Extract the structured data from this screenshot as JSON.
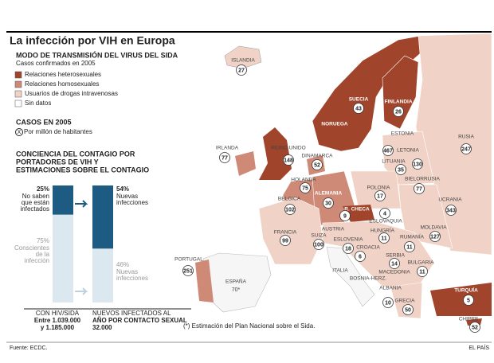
{
  "header": {
    "title": "La infección por VIH en Europa",
    "subtitle": "MODO DE TRANSMISIÓN DEL VIRUS DEL SIDA",
    "note": "Casos confirmados en 2005"
  },
  "legend": [
    {
      "label": "Relaciones heterosexuales",
      "color": "#a0442b"
    },
    {
      "label": "Relaciones homosexuales",
      "color": "#cf8a77"
    },
    {
      "label": "Usuarios de drogas intravenosas",
      "color": "#f0d2c6"
    },
    {
      "label": "Sin datos",
      "color": "#ffffff"
    }
  ],
  "cases": {
    "title": "CASOS EN 2005",
    "symbol": "X",
    "label": "Por millón de habitantes"
  },
  "awareness": {
    "title": [
      "CONCIENCIA DEL CONTAGIO POR",
      "PORTADORES DE VIH Y",
      "ESTIMACIONES SOBRE EL CONTAGIO"
    ],
    "bars": [
      {
        "values": [
          25,
          75
        ],
        "value_labels": [
          "25%",
          "75%"
        ],
        "labels": [
          [
            "No saben",
            "que están",
            "infectados"
          ],
          [
            "Conscientes",
            "de la",
            "infección"
          ]
        ],
        "caption": [
          "CON HIV/SIDA",
          "Entre 1.039.000",
          "y 1.185.000"
        ]
      },
      {
        "values": [
          54,
          46
        ],
        "value_labels": [
          "54%",
          "46%"
        ],
        "labels": [
          [
            "Nuevas",
            "infecciones"
          ],
          [
            "Nuevas",
            "infecciones"
          ]
        ],
        "caption": [
          "NUEVOS INFECTADOS AL",
          "AÑO POR CONTACTO SEXUAL",
          "32.000"
        ]
      }
    ]
  },
  "countries": [
    {
      "name": "ISLANDIA",
      "value": 27
    },
    {
      "name": "NORUEGA"
    },
    {
      "name": "SUECIA",
      "value": 43
    },
    {
      "name": "FINLANDIA",
      "value": 26
    },
    {
      "name": "RUSIA",
      "value": 247
    },
    {
      "name": "ESTONIA",
      "value": 467
    },
    {
      "name": "LETONIA",
      "value": 130
    },
    {
      "name": "LITUANIA",
      "value": 35
    },
    {
      "name": "IRLANDA",
      "value": 77
    },
    {
      "name": "REINO UNIDO",
      "value": 148
    },
    {
      "name": "DINAMARCA",
      "value": 52
    },
    {
      "name": "HOLANDA",
      "value": 75
    },
    {
      "name": "BIELORRUSIA",
      "value": 77
    },
    {
      "name": "POLONIA",
      "value": 17
    },
    {
      "name": "ALEMANIA",
      "value": 30
    },
    {
      "name": "BELGICA",
      "value": 102
    },
    {
      "name": "R. CHECA",
      "value": 9
    },
    {
      "name": "ESLOVAQUIA",
      "value": 4
    },
    {
      "name": "UCRANIA",
      "value": 343
    },
    {
      "name": "MOLDAVIA",
      "value": 127
    },
    {
      "name": "FRANCIA",
      "value": 99
    },
    {
      "name": "SUIZA",
      "value": 100
    },
    {
      "name": "AUSTRIA"
    },
    {
      "name": "HUNGRÍA",
      "value": 11
    },
    {
      "name": "RUMANÍA",
      "value": 11
    },
    {
      "name": "ESLOVENIA",
      "value": 18
    },
    {
      "name": "CROACIA",
      "value": 6
    },
    {
      "name": "BOSNIA-HERZ."
    },
    {
      "name": "SERBIA",
      "value": 14
    },
    {
      "name": "BULGARIA",
      "value": 11
    },
    {
      "name": "MACEDONIA"
    },
    {
      "name": "ALBANIA",
      "value": 10
    },
    {
      "name": "ITALIA"
    },
    {
      "name": "PORTUGAL",
      "value": 251
    },
    {
      "name": "ESPAÑA",
      "value": 70,
      "value_label": "70*"
    },
    {
      "name": "GRECIA",
      "value": 50
    },
    {
      "name": "TURQUÍA",
      "value": 5
    },
    {
      "name": "CHIPRE",
      "value": 52
    }
  ],
  "footer": {
    "note": "(*) Estimación del Plan Nacional sobre el Sida.",
    "source": "Fuente: ECDC.",
    "brand": "EL PAÍS"
  }
}
